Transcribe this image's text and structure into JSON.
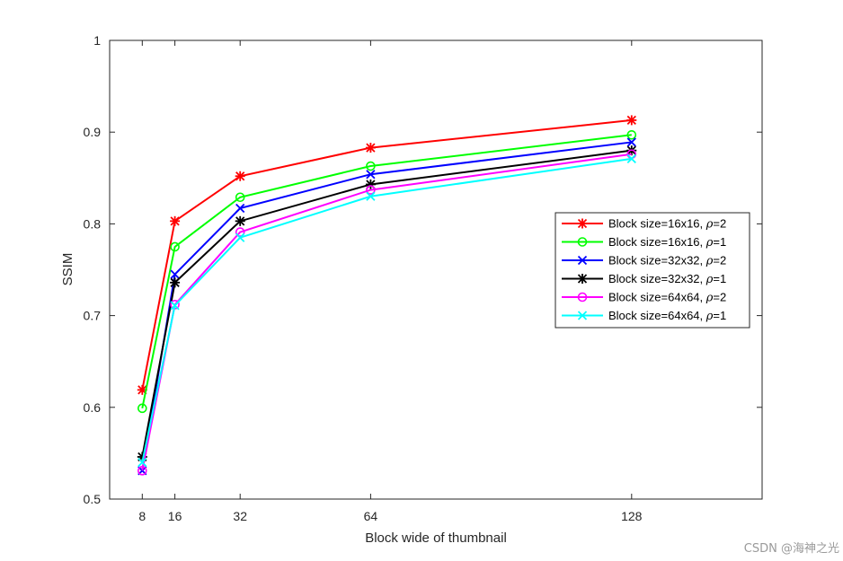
{
  "chart_data": {
    "type": "line",
    "title": "",
    "xlabel": "Block wide of thumbnail",
    "ylabel": "SSIM",
    "xlim": [
      0,
      160
    ],
    "ylim": [
      0.5,
      1.0
    ],
    "xticks": [
      8,
      16,
      32,
      64,
      128
    ],
    "yticks": [
      0.5,
      0.6,
      0.7,
      0.8,
      0.9,
      1.0
    ],
    "ytick_labels": [
      "0.5",
      "0.6",
      "0.7",
      "0.8",
      "0.9",
      "1"
    ],
    "x": [
      8,
      16,
      32,
      64,
      128
    ],
    "legend_position": "right",
    "series": [
      {
        "name": "Block size=16x16, ρ=2",
        "label_prefix": "Block size=16x16, ",
        "rho_symbol": "ρ",
        "rho_value": "=2",
        "color": "#ff0000",
        "marker": "asterisk",
        "values": [
          0.619,
          0.803,
          0.852,
          0.883,
          0.913
        ]
      },
      {
        "name": "Block size=16x16, ρ=1",
        "label_prefix": "Block size=16x16, ",
        "rho_symbol": "ρ",
        "rho_value": "=1",
        "color": "#00ff00",
        "marker": "circle",
        "values": [
          0.599,
          0.775,
          0.829,
          0.863,
          0.897
        ]
      },
      {
        "name": "Block size=32x32, ρ=2",
        "label_prefix": "Block size=32x32, ",
        "rho_symbol": "ρ",
        "rho_value": "=2",
        "color": "#0000ff",
        "marker": "x",
        "values": [
          0.531,
          0.745,
          0.817,
          0.854,
          0.889
        ]
      },
      {
        "name": "Block size=32x32, ρ=1",
        "label_prefix": "Block size=32x32, ",
        "rho_symbol": "ρ",
        "rho_value": "=1",
        "color": "#000000",
        "marker": "asterisk",
        "values": [
          0.546,
          0.736,
          0.803,
          0.843,
          0.88
        ]
      },
      {
        "name": "Block size=64x64, ρ=2",
        "label_prefix": "Block size=64x64, ",
        "rho_symbol": "ρ",
        "rho_value": "=2",
        "color": "#ff00ff",
        "marker": "circle",
        "values": [
          0.531,
          0.712,
          0.791,
          0.837,
          0.876
        ]
      },
      {
        "name": "Block size=64x64, ρ=1",
        "label_prefix": "Block size=64x64, ",
        "rho_symbol": "ρ",
        "rho_value": "=1",
        "color": "#00ffff",
        "marker": "x",
        "values": [
          0.54,
          0.711,
          0.785,
          0.83,
          0.871
        ]
      }
    ]
  },
  "watermark": "CSDN @海神之光"
}
